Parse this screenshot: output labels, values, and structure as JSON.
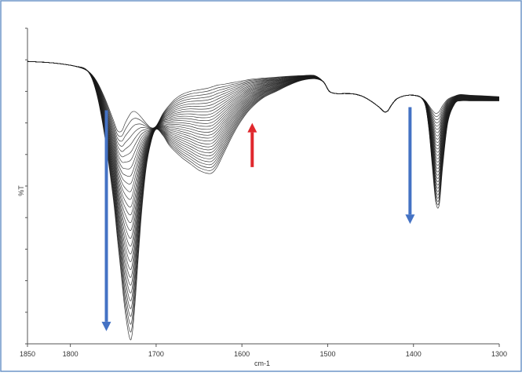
{
  "chart_data": {
    "type": "line",
    "xlabel": "cm-1",
    "ylabel": "%T",
    "x_ticks": [
      1850,
      1800,
      1700,
      1600,
      1500,
      1400,
      1300
    ],
    "xlim": [
      1850,
      1300
    ],
    "ylim": [
      0,
      100
    ],
    "y_tick_count": 11,
    "x_reversed": true,
    "grid": false,
    "series_count": 30,
    "curve_color": "#1a1a1a",
    "frame_color": "#6e96c8",
    "baseline_start": {
      "x": [
        1850,
        1820,
        1795,
        1780,
        1770,
        1760,
        1750,
        1745,
        1740,
        1736,
        1731,
        1728,
        1724,
        1718,
        1712,
        1706,
        1700,
        1692,
        1685,
        1678,
        1670,
        1660,
        1650,
        1640,
        1634,
        1628,
        1620,
        1610,
        1600,
        1590,
        1575,
        1560,
        1545,
        1530,
        1515,
        1505,
        1498,
        1490,
        1480,
        1470,
        1460,
        1450,
        1440,
        1434,
        1430,
        1426,
        1420,
        1412,
        1405,
        1398,
        1392,
        1386,
        1382,
        1378,
        1374,
        1370,
        1366,
        1360,
        1352,
        1345,
        1335,
        1320,
        1300
      ],
      "y": [
        89.5,
        89.0,
        88.0,
        86.5,
        83.5,
        78.0,
        71.0,
        67.5,
        67.5,
        70.0,
        72.5,
        73.5,
        73.5,
        72.0,
        70.0,
        68.5,
        69.0,
        73.0,
        75.5,
        77.5,
        79.0,
        80.0,
        80.5,
        81.0,
        81.5,
        82.0,
        82.3,
        82.8,
        83.3,
        83.8,
        84.2,
        84.5,
        84.8,
        85.0,
        85.0,
        83.0,
        80.0,
        79.3,
        79.3,
        79.2,
        78.5,
        77.0,
        75.0,
        73.5,
        73.8,
        75.5,
        77.5,
        78.5,
        78.8,
        78.7,
        78.2,
        77.0,
        75.5,
        74.0,
        73.0,
        73.6,
        75.5,
        77.5,
        78.5,
        79.0,
        78.8,
        78.6,
        78.3
      ]
    },
    "baseline_end": {
      "x": [
        1850,
        1820,
        1795,
        1780,
        1770,
        1760,
        1750,
        1745,
        1740,
        1736,
        1731,
        1728,
        1724,
        1718,
        1712,
        1706,
        1700,
        1692,
        1685,
        1678,
        1670,
        1660,
        1650,
        1640,
        1634,
        1628,
        1620,
        1610,
        1600,
        1590,
        1575,
        1560,
        1545,
        1530,
        1515,
        1505,
        1498,
        1490,
        1480,
        1470,
        1460,
        1450,
        1440,
        1434,
        1430,
        1426,
        1420,
        1412,
        1405,
        1398,
        1392,
        1386,
        1382,
        1378,
        1374,
        1370,
        1366,
        1360,
        1352,
        1345,
        1335,
        1320,
        1300
      ],
      "y": [
        89.5,
        89.0,
        88.0,
        86.5,
        80.0,
        66.0,
        46.0,
        33.0,
        20.0,
        10.0,
        2.0,
        3.0,
        15.0,
        38.0,
        55.0,
        64.0,
        68.0,
        66.0,
        63.0,
        61.0,
        59.0,
        57.0,
        55.0,
        54.0,
        54.3,
        56.5,
        61.0,
        66.5,
        71.0,
        74.5,
        78.0,
        80.0,
        82.0,
        83.5,
        84.0,
        83.0,
        80.0,
        79.3,
        79.3,
        79.2,
        78.5,
        77.0,
        75.0,
        73.5,
        73.8,
        75.5,
        77.5,
        78.5,
        78.8,
        78.7,
        78.2,
        75.5,
        68.0,
        56.0,
        45.0,
        44.0,
        56.0,
        70.0,
        76.0,
        77.0,
        77.0,
        77.0,
        77.0
      ]
    },
    "annotations": [
      {
        "name": "decrease-arrow-carbonyl",
        "direction": "down",
        "color": "#4472c4",
        "x": 1758,
        "y_from": 74,
        "y_to": 4
      },
      {
        "name": "increase-arrow",
        "direction": "up",
        "color": "#e0282d",
        "x": 1588,
        "y_from": 56,
        "y_to": 70
      },
      {
        "name": "decrease-arrow-1370",
        "direction": "down",
        "color": "#4472c4",
        "x": 1404,
        "y_from": 75,
        "y_to": 38
      }
    ]
  }
}
